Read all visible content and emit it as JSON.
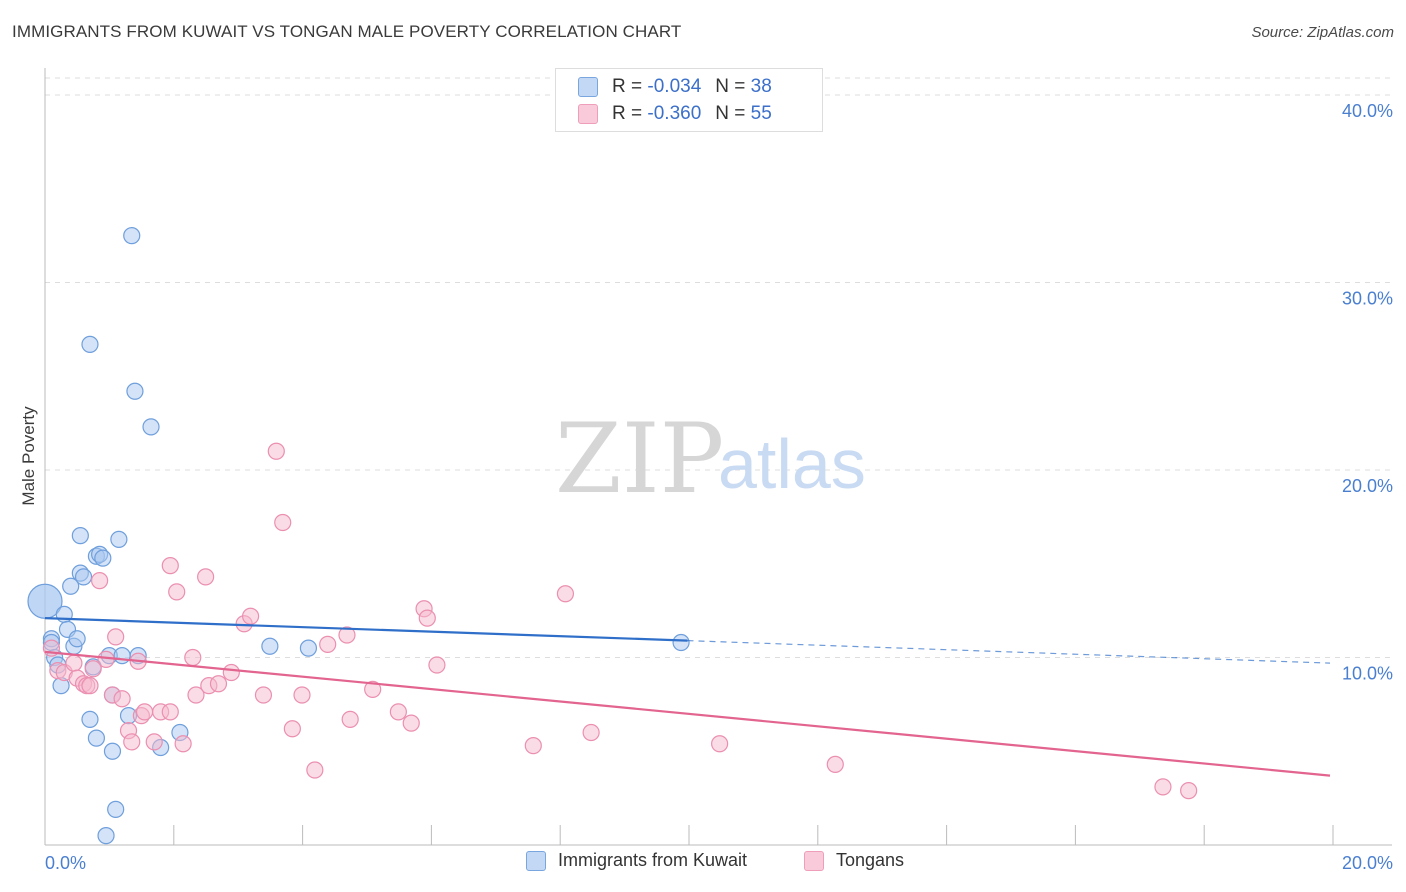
{
  "title": "IMMIGRANTS FROM KUWAIT VS TONGAN MALE POVERTY CORRELATION CHART",
  "source": "Source: ZipAtlas.com",
  "watermark": {
    "zip": "ZIP",
    "atlas": "atlas"
  },
  "legend": {
    "rows": [
      {
        "r_label": "R =",
        "r_value": "-0.034",
        "n_label": "N =",
        "n_value": "38"
      },
      {
        "r_label": "R =",
        "r_value": "-0.360",
        "n_label": "N =",
        "n_value": "55"
      }
    ]
  },
  "bottom_legend": {
    "kuwait": "Immigrants from Kuwait",
    "tongans": "Tongans"
  },
  "colors": {
    "kuwait_fill": "#a9c8f0",
    "kuwait_stroke": "#6f9fdc",
    "kuwait_line": "#2f6fc9",
    "tongan_fill": "#f6b9cd",
    "tongan_stroke": "#eb8fb0",
    "tongan_line": "#e2648f",
    "tick_text": "#4a7fd0",
    "grid": "#dddddd"
  },
  "chart_data": {
    "type": "scatter",
    "title": "IMMIGRANTS FROM KUWAIT VS TONGAN MALE POVERTY CORRELATION CHART",
    "xlabel": "",
    "ylabel": "Male Poverty",
    "xlim": [
      0,
      20
    ],
    "ylim": [
      0,
      40
    ],
    "x_tick_labels": [
      "0.0%",
      "20.0%"
    ],
    "y_ticks": [
      10,
      20,
      30,
      40
    ],
    "y_tick_labels": [
      "10.0%",
      "20.0%",
      "30.0%",
      "40.0%"
    ],
    "series": [
      {
        "name": "Immigrants from Kuwait",
        "r": -0.034,
        "n": 38,
        "trend": {
          "x0": 0,
          "y0": 12.1,
          "x1": 10.0,
          "y1": 10.9,
          "dash_to_x": 20,
          "dash_to_y": 9.7
        },
        "points": [
          [
            0.0,
            13.0
          ],
          [
            0.1,
            11.0
          ],
          [
            0.1,
            10.8
          ],
          [
            0.15,
            10.0
          ],
          [
            0.2,
            9.6
          ],
          [
            0.25,
            8.5
          ],
          [
            0.3,
            12.3
          ],
          [
            0.35,
            11.5
          ],
          [
            0.4,
            13.8
          ],
          [
            0.45,
            10.6
          ],
          [
            0.5,
            11.0
          ],
          [
            0.55,
            14.5
          ],
          [
            0.6,
            14.3
          ],
          [
            0.55,
            16.5
          ],
          [
            0.7,
            6.7
          ],
          [
            0.75,
            9.5
          ],
          [
            0.7,
            26.7
          ],
          [
            0.8,
            15.4
          ],
          [
            0.85,
            15.5
          ],
          [
            0.9,
            15.3
          ],
          [
            0.8,
            5.7
          ],
          [
            1.0,
            10.1
          ],
          [
            1.05,
            8.0
          ],
          [
            1.05,
            5.0
          ],
          [
            1.15,
            16.3
          ],
          [
            1.2,
            10.1
          ],
          [
            1.3,
            6.9
          ],
          [
            1.35,
            32.5
          ],
          [
            1.4,
            24.2
          ],
          [
            1.45,
            10.1
          ],
          [
            1.65,
            22.3
          ],
          [
            1.8,
            5.2
          ],
          [
            2.1,
            6.0
          ],
          [
            1.1,
            1.9
          ],
          [
            0.95,
            0.5
          ],
          [
            3.5,
            10.6
          ],
          [
            4.1,
            10.5
          ],
          [
            9.9,
            10.8
          ]
        ]
      },
      {
        "name": "Tongans",
        "r": -0.36,
        "n": 55,
        "trend": {
          "x0": 0,
          "y0": 10.3,
          "x1": 20,
          "y1": 3.7
        },
        "points": [
          [
            0.1,
            10.5
          ],
          [
            0.2,
            9.3
          ],
          [
            0.3,
            9.2
          ],
          [
            0.45,
            9.7
          ],
          [
            0.5,
            8.9
          ],
          [
            0.6,
            8.6
          ],
          [
            0.65,
            8.5
          ],
          [
            0.7,
            8.5
          ],
          [
            0.75,
            9.4
          ],
          [
            0.85,
            14.1
          ],
          [
            0.95,
            9.9
          ],
          [
            1.05,
            8.0
          ],
          [
            1.1,
            11.1
          ],
          [
            1.2,
            7.8
          ],
          [
            1.3,
            6.1
          ],
          [
            1.35,
            5.5
          ],
          [
            1.45,
            9.8
          ],
          [
            1.5,
            6.9
          ],
          [
            1.55,
            7.1
          ],
          [
            1.7,
            5.5
          ],
          [
            1.8,
            7.1
          ],
          [
            1.95,
            7.1
          ],
          [
            1.95,
            14.9
          ],
          [
            2.05,
            13.5
          ],
          [
            2.15,
            5.4
          ],
          [
            2.3,
            10.0
          ],
          [
            2.35,
            8.0
          ],
          [
            2.5,
            14.3
          ],
          [
            2.55,
            8.5
          ],
          [
            2.7,
            8.6
          ],
          [
            2.9,
            9.2
          ],
          [
            3.1,
            11.8
          ],
          [
            3.2,
            12.2
          ],
          [
            3.4,
            8.0
          ],
          [
            3.6,
            21.0
          ],
          [
            3.7,
            17.2
          ],
          [
            3.85,
            6.2
          ],
          [
            4.0,
            8.0
          ],
          [
            4.2,
            4.0
          ],
          [
            4.4,
            10.7
          ],
          [
            4.7,
            11.2
          ],
          [
            4.75,
            6.7
          ],
          [
            5.1,
            8.3
          ],
          [
            5.5,
            7.1
          ],
          [
            5.7,
            6.5
          ],
          [
            5.9,
            12.6
          ],
          [
            5.95,
            12.1
          ],
          [
            6.1,
            9.6
          ],
          [
            7.6,
            5.3
          ],
          [
            8.1,
            13.4
          ],
          [
            8.5,
            6.0
          ],
          [
            10.5,
            5.4
          ],
          [
            12.3,
            4.3
          ],
          [
            17.4,
            3.1
          ],
          [
            17.8,
            2.9
          ]
        ]
      }
    ],
    "grid": true,
    "legend_position": "top-center"
  }
}
